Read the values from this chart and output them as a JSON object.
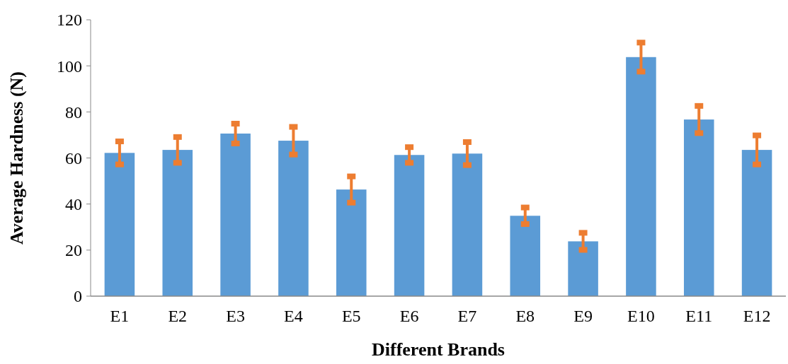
{
  "chart_data": {
    "type": "bar",
    "xlabel": "Different Brands",
    "ylabel": "Average Hardness (N)",
    "categories": [
      "E1",
      "E2",
      "E3",
      "E4",
      "E5",
      "E6",
      "E7",
      "E8",
      "E9",
      "E10",
      "E11",
      "E12"
    ],
    "values": [
      62.2,
      63.5,
      70.6,
      67.5,
      46.3,
      61.3,
      61.9,
      34.9,
      23.8,
      103.8,
      76.7,
      63.5
    ],
    "errors": [
      5,
      5.6,
      4.3,
      6,
      5.7,
      3.4,
      5,
      3.6,
      3.7,
      6.3,
      5.9,
      6.3
    ],
    "color": "#5b9bd5",
    "ylim": [
      0,
      120
    ],
    "yticks": [
      0,
      20,
      40,
      60,
      80,
      100,
      120
    ]
  }
}
